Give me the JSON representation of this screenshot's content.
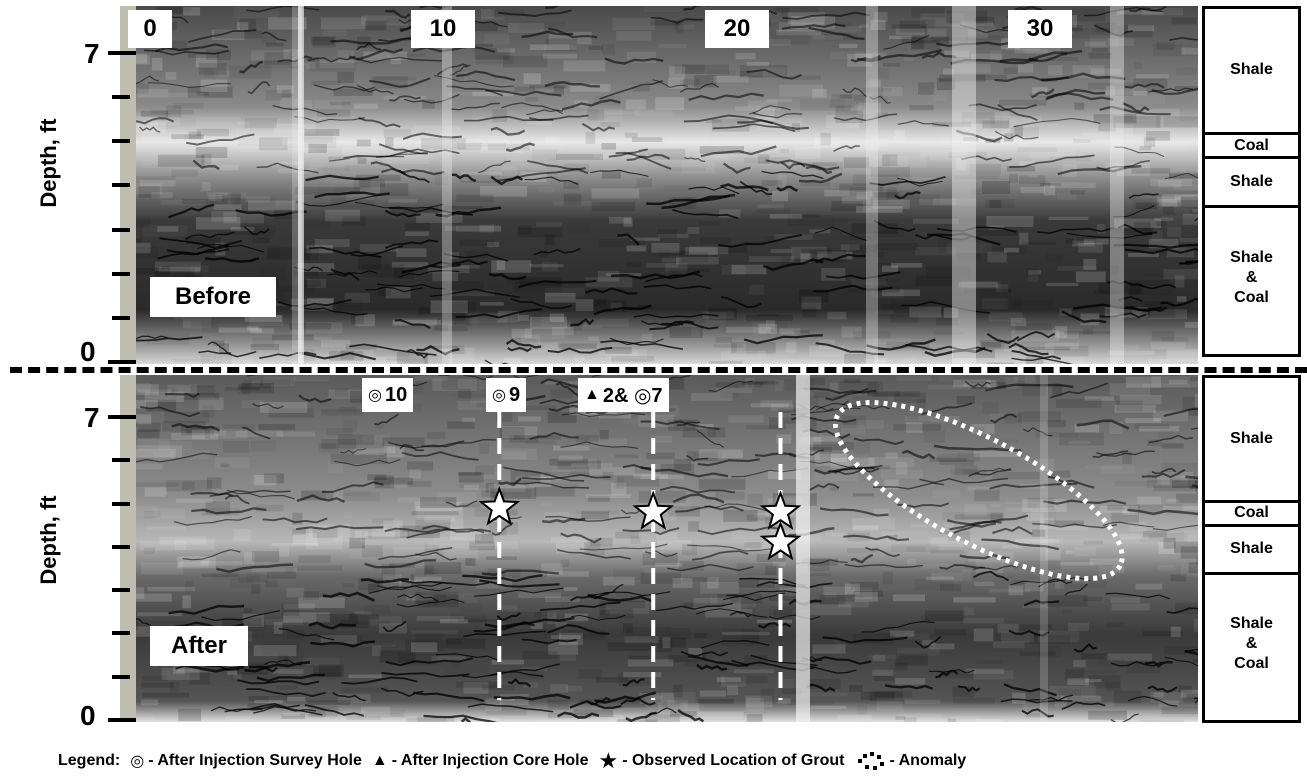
{
  "x_labels": [
    "0",
    "10",
    "20",
    "30"
  ],
  "before": {
    "tag": "Before",
    "ylabel": "Depth, ft",
    "y_top": "7",
    "y_bottom": "0",
    "layers": [
      {
        "label": "Shale",
        "from": 7.0,
        "to": 4.4
      },
      {
        "label": "Coal",
        "from": 4.4,
        "to": 3.9
      },
      {
        "label": "Shale",
        "from": 3.9,
        "to": 2.9
      },
      {
        "label": "Shale\n&\nCoal",
        "from": 2.9,
        "to": 0.0
      }
    ]
  },
  "after": {
    "tag": "After",
    "ylabel": "Depth, ft",
    "y_top": "7",
    "y_bottom": "0",
    "layers": [
      {
        "label": "Shale",
        "from": 7.0,
        "to": 4.4
      },
      {
        "label": "Coal",
        "from": 4.4,
        "to": 3.9
      },
      {
        "label": "Shale",
        "from": 3.9,
        "to": 2.9
      },
      {
        "label": "Shale\n&\nCoal",
        "from": 2.9,
        "to": 0.0
      }
    ],
    "holes": [
      {
        "label": "10",
        "symbol": "◎",
        "distance": 11.8,
        "grout_depths": [
          4.9
        ]
      },
      {
        "label": "9",
        "symbol": "◎",
        "distance": 17.0,
        "grout_depths": [
          4.8
        ]
      },
      {
        "label": "2& ◎7",
        "symbol": "▲",
        "distance": 21.3,
        "grout_depths": [
          4.8,
          4.1
        ]
      }
    ],
    "anomaly": {
      "center_distance": 28.0,
      "center_depth": 5.3
    }
  },
  "legend": {
    "prefix": "Legend:",
    "survey_symbol": "◎",
    "survey_text": "- After Injection Survey Hole",
    "core_symbol": "▲",
    "core_text": "- After Injection Core Hole",
    "grout_symbol": "★",
    "grout_text": "- Observed Location of Grout",
    "anomaly_text": "- Anomaly"
  },
  "colors": {
    "background": "#ffffff",
    "radar_light": "#d0d0d0",
    "radar_dark": "#1a1a1a",
    "strip": "#bdbdb0"
  }
}
